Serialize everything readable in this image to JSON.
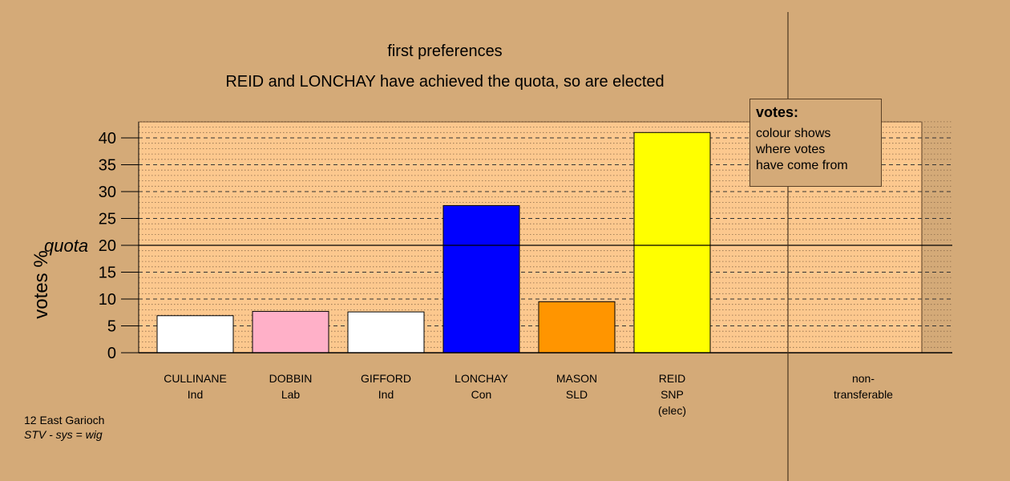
{
  "chart_data": {
    "type": "bar",
    "title": "first preferences",
    "subtitle": "REID and LONCHAY have achieved the quota, so are elected",
    "ylabel": "votes %",
    "ylim": [
      0,
      43
    ],
    "yticks": [
      0,
      5,
      10,
      15,
      20,
      25,
      30,
      35,
      40
    ],
    "quota": {
      "label": "quota",
      "value": 20
    },
    "grid": true,
    "categories": [
      {
        "name": "CULLINANE",
        "party": "Ind",
        "note": "",
        "value": 6.9,
        "color": "#ffffff"
      },
      {
        "name": "DOBBIN",
        "party": "Lab",
        "note": "",
        "value": 7.7,
        "color": "#ffb0c8"
      },
      {
        "name": "GIFFORD",
        "party": "Ind",
        "note": "",
        "value": 7.6,
        "color": "#ffffff"
      },
      {
        "name": "LONCHAY",
        "party": "Con",
        "note": "",
        "value": 27.4,
        "color": "#0000ff"
      },
      {
        "name": "MASON",
        "party": "SLD",
        "note": "",
        "value": 9.5,
        "color": "#ff9500"
      },
      {
        "name": "REID",
        "party": "SNP",
        "note": "(elec)",
        "value": 41.0,
        "color": "#ffff00"
      }
    ],
    "nontransferable": {
      "line1": "non-",
      "line2": "transferable",
      "value": 0
    },
    "legend": {
      "title": "votes:",
      "lines": [
        "colour shows",
        "where votes",
        "have come from"
      ],
      "placement": "top-right"
    }
  },
  "footer": {
    "line1": "12 East Garioch",
    "line2": "STV - sys = wig"
  },
  "colors": {
    "background": "#d4aa78",
    "plot_area": "#fcc88e"
  }
}
